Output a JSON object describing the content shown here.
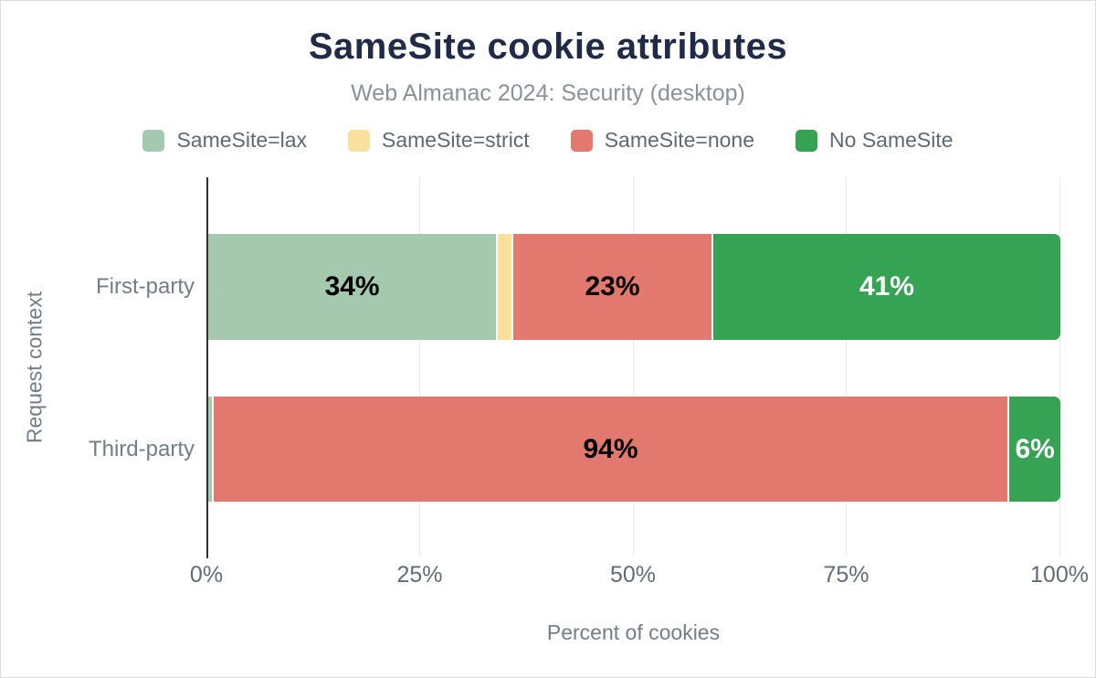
{
  "chart_data": {
    "type": "bar",
    "variant": "horizontal-stacked",
    "title": "SameSite cookie attributes",
    "subtitle": "Web Almanac 2024: Security (desktop)",
    "xlabel": "Percent of cookies",
    "ylabel": "Request context",
    "xlim": [
      0,
      100
    ],
    "x_ticks": [
      {
        "value": 0,
        "label": "0%"
      },
      {
        "value": 25,
        "label": "25%"
      },
      {
        "value": 50,
        "label": "50%"
      },
      {
        "value": 75,
        "label": "75%"
      },
      {
        "value": 100,
        "label": "100%"
      }
    ],
    "categories": [
      "First-party",
      "Third-party"
    ],
    "series": [
      {
        "name": "SameSite=lax",
        "color": "#a4c9af",
        "label_color": "#000000",
        "values": [
          34,
          0.4
        ],
        "labels": [
          "34%",
          ""
        ]
      },
      {
        "name": "SameSite=strict",
        "color": "#f9e09c",
        "label_color": "#000000",
        "values": [
          1.6,
          0
        ],
        "labels": [
          "",
          ""
        ]
      },
      {
        "name": "SameSite=none",
        "color": "#e3786f",
        "label_color": "#000000",
        "values": [
          23.4,
          93.6
        ],
        "labels": [
          "23%",
          "94%"
        ]
      },
      {
        "name": "No SameSite",
        "color": "#36a354",
        "label_color": "#ffffff",
        "values": [
          41,
          6
        ],
        "labels": [
          "41%",
          "6%"
        ]
      }
    ],
    "grid": true,
    "legend_position": "top",
    "colors": {
      "title": "#1f2b47",
      "subtitle": "#8a919a",
      "legend_text": "#5f6973",
      "category_label": "#747d87",
      "tick_label": "#626b76",
      "axis_title": "#747d87",
      "axis_line": "#35302b",
      "gridline": "#e8e8e8",
      "background": "#ffffff"
    }
  }
}
